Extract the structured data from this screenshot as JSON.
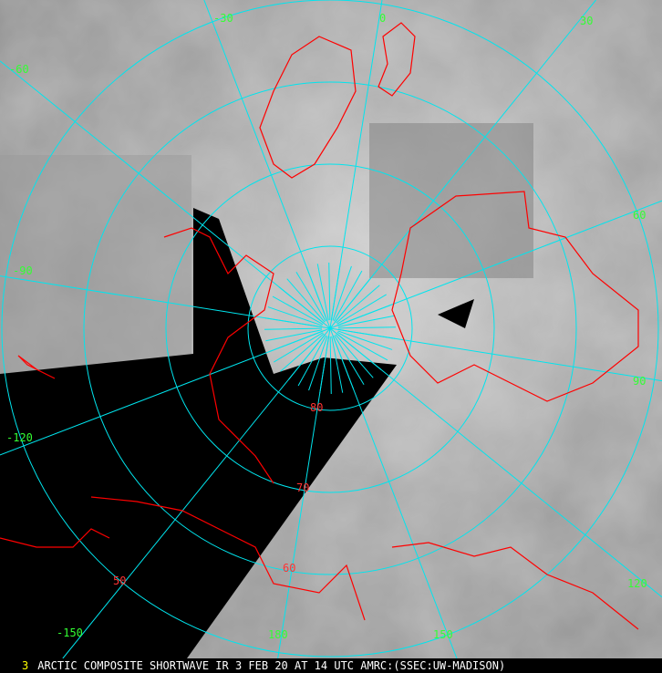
{
  "caption": {
    "frame_number": "3",
    "title": "ARCTIC COMPOSITE SHORTWAVE IR 3 FEB 20 AT 14 UTC AMRC:(SSEC:UW-MADISON)"
  },
  "map": {
    "projection": "polar stereographic, north pole",
    "grid_color": "#00e5ee",
    "coastline_color": "#ff0000",
    "label_color": "#33ff33",
    "longitude_labels": [
      "-30",
      "0",
      "30",
      "-60",
      "-90",
      "-120",
      "-150",
      "180",
      "150",
      "120",
      "90",
      "60"
    ],
    "latitude_labels": [
      "80",
      "70",
      "60",
      "50"
    ],
    "longitudes": [
      -150,
      -120,
      -90,
      -60,
      -30,
      0,
      30,
      60,
      90,
      120,
      150,
      180
    ],
    "latitudes": [
      80,
      70,
      60,
      50
    ]
  }
}
